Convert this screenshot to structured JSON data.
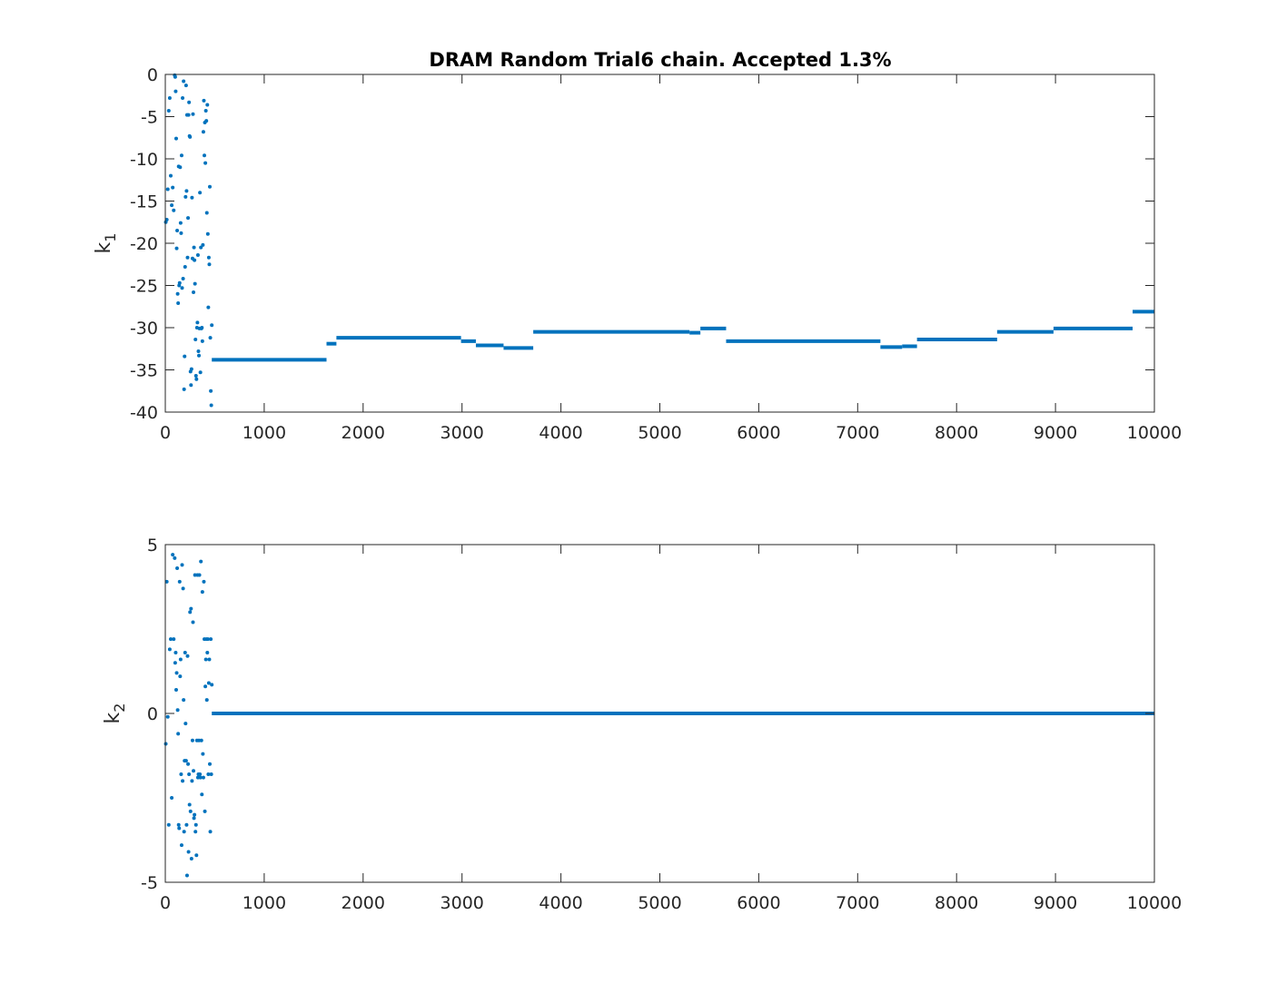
{
  "chart_data": [
    {
      "type": "scatter",
      "title": "DRAM Random Trial6 chain. Accepted 1.3%",
      "ylabel": {
        "base": "k",
        "sub": "1"
      },
      "xlabel": "",
      "xlim": [
        0,
        10000
      ],
      "ylim": [
        -40,
        0
      ],
      "xticks": [
        0,
        1000,
        2000,
        3000,
        4000,
        5000,
        6000,
        7000,
        8000,
        9000,
        10000
      ],
      "yticks": [
        0,
        -5,
        -10,
        -15,
        -20,
        -25,
        -30,
        -35,
        -40
      ],
      "xtick_labels": [
        "0",
        "1000",
        "2000",
        "3000",
        "4000",
        "5000",
        "6000",
        "7000",
        "8000",
        "9000",
        "10000"
      ],
      "ytick_labels": [
        "0",
        "-5",
        "-10",
        "-15",
        "-20",
        "-25",
        "-30",
        "-35",
        "-40"
      ],
      "color": "#0072BD",
      "grid": false,
      "burnin_points": [
        [
          5,
          -17.5
        ],
        [
          15,
          -17.2
        ],
        [
          25,
          -13.6
        ],
        [
          35,
          -4.3
        ],
        [
          45,
          -2.8
        ],
        [
          55,
          -12.0
        ],
        [
          65,
          -15.5
        ],
        [
          75,
          -13.4
        ],
        [
          85,
          -16.1
        ],
        [
          95,
          -0.1
        ],
        [
          100,
          -0.3
        ],
        [
          105,
          -2.0
        ],
        [
          110,
          -7.6
        ],
        [
          115,
          -20.6
        ],
        [
          120,
          -18.5
        ],
        [
          125,
          -26.0
        ],
        [
          130,
          -27.1
        ],
        [
          135,
          -10.9
        ],
        [
          140,
          -25.0
        ],
        [
          145,
          -24.7
        ],
        [
          150,
          -11.0
        ],
        [
          155,
          -17.6
        ],
        [
          160,
          -18.8
        ],
        [
          165,
          -9.6
        ],
        [
          170,
          -25.3
        ],
        [
          175,
          -2.8
        ],
        [
          180,
          -24.2
        ],
        [
          185,
          -0.8
        ],
        [
          190,
          -37.3
        ],
        [
          195,
          -33.4
        ],
        [
          200,
          -22.8
        ],
        [
          205,
          -14.5
        ],
        [
          210,
          -1.3
        ],
        [
          215,
          -13.8
        ],
        [
          220,
          -4.8
        ],
        [
          225,
          -21.7
        ],
        [
          230,
          -17.0
        ],
        [
          235,
          -4.8
        ],
        [
          240,
          -3.3
        ],
        [
          245,
          -7.3
        ],
        [
          250,
          -7.4
        ],
        [
          255,
          -35.2
        ],
        [
          260,
          -36.8
        ],
        [
          265,
          -34.9
        ],
        [
          270,
          -14.6
        ],
        [
          275,
          -21.8
        ],
        [
          280,
          -4.7
        ],
        [
          285,
          -25.8
        ],
        [
          290,
          -20.5
        ],
        [
          295,
          -22.0
        ],
        [
          300,
          -24.8
        ],
        [
          305,
          -31.4
        ],
        [
          310,
          -35.7
        ],
        [
          315,
          -36.1
        ],
        [
          320,
          -30.0
        ],
        [
          325,
          -29.4
        ],
        [
          330,
          -21.4
        ],
        [
          335,
          -32.8
        ],
        [
          340,
          -33.3
        ],
        [
          345,
          -30.1
        ],
        [
          350,
          -14.0
        ],
        [
          355,
          -35.3
        ],
        [
          360,
          -20.5
        ],
        [
          365,
          -30.1
        ],
        [
          370,
          -30.0
        ],
        [
          375,
          -31.6
        ],
        [
          380,
          -20.2
        ],
        [
          385,
          -6.8
        ],
        [
          390,
          -3.1
        ],
        [
          395,
          -9.6
        ],
        [
          400,
          -5.7
        ],
        [
          405,
          -10.5
        ],
        [
          410,
          -4.3
        ],
        [
          415,
          -5.5
        ],
        [
          420,
          -16.4
        ],
        [
          425,
          -3.6
        ],
        [
          430,
          -18.9
        ],
        [
          435,
          -27.6
        ],
        [
          440,
          -21.7
        ],
        [
          445,
          -22.5
        ],
        [
          450,
          -13.3
        ],
        [
          455,
          -31.2
        ],
        [
          460,
          -37.5
        ],
        [
          465,
          -39.2
        ],
        [
          470,
          -29.7
        ]
      ],
      "plateaus": [
        {
          "x": [
            470,
            1630
          ],
          "y": -33.8
        },
        {
          "x": [
            1630,
            1730
          ],
          "y": -31.9
        },
        {
          "x": [
            1730,
            2990
          ],
          "y": -31.2
        },
        {
          "x": [
            2990,
            3140
          ],
          "y": -31.6
        },
        {
          "x": [
            3140,
            3420
          ],
          "y": -32.1
        },
        {
          "x": [
            3420,
            3720
          ],
          "y": -32.4
        },
        {
          "x": [
            3720,
            5300
          ],
          "y": -30.5
        },
        {
          "x": [
            5300,
            5410
          ],
          "y": -30.6
        },
        {
          "x": [
            5410,
            5670
          ],
          "y": -30.1
        },
        {
          "x": [
            5670,
            7230
          ],
          "y": -31.6
        },
        {
          "x": [
            7230,
            7450
          ],
          "y": -32.3
        },
        {
          "x": [
            7450,
            7600
          ],
          "y": -32.2
        },
        {
          "x": [
            7600,
            8410
          ],
          "y": -31.4
        },
        {
          "x": [
            8410,
            8980
          ],
          "y": -30.5
        },
        {
          "x": [
            8980,
            9780
          ],
          "y": -30.1
        },
        {
          "x": [
            9780,
            10000
          ],
          "y": -28.1
        }
      ]
    },
    {
      "type": "scatter",
      "title": "",
      "ylabel": {
        "base": "k",
        "sub": "2"
      },
      "xlabel": "",
      "xlim": [
        0,
        10000
      ],
      "ylim": [
        -5,
        5
      ],
      "xticks": [
        0,
        1000,
        2000,
        3000,
        4000,
        5000,
        6000,
        7000,
        8000,
        9000,
        10000
      ],
      "yticks": [
        5,
        0,
        -5
      ],
      "xtick_labels": [
        "0",
        "1000",
        "2000",
        "3000",
        "4000",
        "5000",
        "6000",
        "7000",
        "8000",
        "9000",
        "10000"
      ],
      "ytick_labels": [
        "5",
        "0",
        "-5"
      ],
      "color": "#0072BD",
      "grid": false,
      "burnin_points": [
        [
          5,
          -0.9
        ],
        [
          15,
          3.9
        ],
        [
          25,
          -0.1
        ],
        [
          35,
          -3.3
        ],
        [
          45,
          1.9
        ],
        [
          55,
          2.2
        ],
        [
          65,
          -2.5
        ],
        [
          75,
          4.7
        ],
        [
          85,
          2.2
        ],
        [
          95,
          4.6
        ],
        [
          100,
          1.5
        ],
        [
          105,
          1.8
        ],
        [
          110,
          0.7
        ],
        [
          115,
          1.2
        ],
        [
          120,
          4.3
        ],
        [
          125,
          0.1
        ],
        [
          130,
          -0.6
        ],
        [
          135,
          -3.3
        ],
        [
          140,
          -3.4
        ],
        [
          145,
          3.9
        ],
        [
          150,
          1.1
        ],
        [
          155,
          1.6
        ],
        [
          160,
          -1.8
        ],
        [
          165,
          -3.9
        ],
        [
          170,
          4.4
        ],
        [
          175,
          -2.0
        ],
        [
          180,
          3.7
        ],
        [
          185,
          0.4
        ],
        [
          190,
          -3.5
        ],
        [
          195,
          -1.4
        ],
        [
          200,
          1.8
        ],
        [
          205,
          -0.3
        ],
        [
          210,
          -1.4
        ],
        [
          215,
          -3.3
        ],
        [
          220,
          -4.8
        ],
        [
          225,
          1.7
        ],
        [
          230,
          -1.5
        ],
        [
          235,
          -4.1
        ],
        [
          240,
          -1.8
        ],
        [
          245,
          -2.7
        ],
        [
          250,
          3.0
        ],
        [
          255,
          -2.9
        ],
        [
          260,
          3.1
        ],
        [
          265,
          -4.3
        ],
        [
          270,
          -2.0
        ],
        [
          275,
          -0.8
        ],
        [
          280,
          2.7
        ],
        [
          285,
          -1.7
        ],
        [
          290,
          -3.1
        ],
        [
          295,
          -3.0
        ],
        [
          300,
          4.1
        ],
        [
          305,
          -3.5
        ],
        [
          310,
          -3.3
        ],
        [
          315,
          -4.2
        ],
        [
          320,
          -0.8
        ],
        [
          325,
          4.1
        ],
        [
          330,
          -1.9
        ],
        [
          335,
          -1.8
        ],
        [
          340,
          -0.8
        ],
        [
          345,
          4.1
        ],
        [
          350,
          -1.8
        ],
        [
          355,
          -1.9
        ],
        [
          360,
          4.5
        ],
        [
          365,
          -0.8
        ],
        [
          370,
          -2.4
        ],
        [
          375,
          3.6
        ],
        [
          380,
          -1.2
        ],
        [
          385,
          -1.9
        ],
        [
          390,
          3.9
        ],
        [
          395,
          2.2
        ],
        [
          400,
          -2.9
        ],
        [
          405,
          0.8
        ],
        [
          410,
          1.6
        ],
        [
          415,
          2.2
        ],
        [
          420,
          0.4
        ],
        [
          425,
          1.8
        ],
        [
          430,
          2.2
        ],
        [
          435,
          -1.8
        ],
        [
          440,
          0.9
        ],
        [
          445,
          1.6
        ],
        [
          450,
          -1.5
        ],
        [
          455,
          -3.5
        ],
        [
          460,
          2.2
        ],
        [
          465,
          -1.8
        ],
        [
          470,
          0.85
        ]
      ],
      "plateaus": [
        {
          "x": [
            470,
            10000
          ],
          "y": 0.0
        }
      ]
    }
  ]
}
